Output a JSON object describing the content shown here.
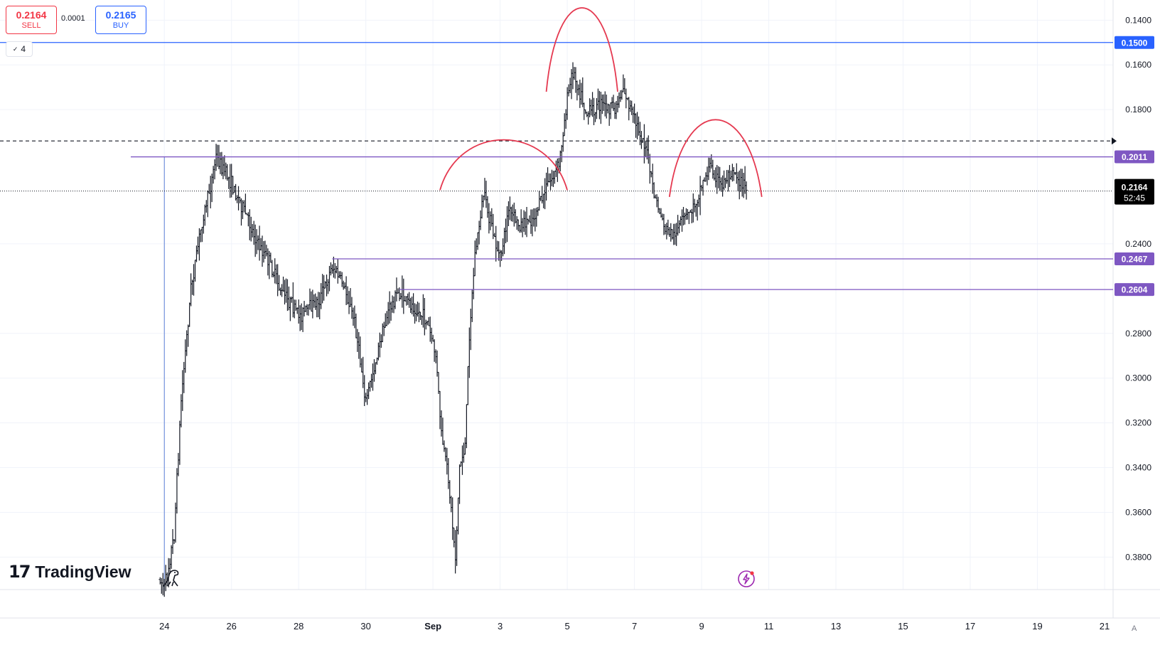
{
  "trade_panel": {
    "sell_price": "0.2164",
    "sell_label": "SELL",
    "spread": "0.0001",
    "buy_price": "0.2165",
    "buy_label": "BUY",
    "lots": "4"
  },
  "branding": {
    "logo_mark": "17",
    "logo_text": "TradingView"
  },
  "scale_mode": "A",
  "icons": [
    "chevron-down-icon",
    "tradingview-logo-icon",
    "dino-icon",
    "lightning-icon"
  ],
  "colors": {
    "line_purple": "#7e57c2",
    "arc_red": "#e53950",
    "last_price_bg": "#000000",
    "axis_text": "#131722"
  },
  "chart_data": {
    "type": "bar",
    "ohlc_style": true,
    "price_axis_inverted": true,
    "ylim": [
      0.131,
      0.3945
    ],
    "y_ticks": [
      0.14,
      0.16,
      0.18,
      0.24,
      0.28,
      0.3,
      0.32,
      0.34,
      0.36,
      0.38
    ],
    "y_tick_labels": [
      "0.1400",
      "0.1600",
      "0.1800",
      "0.2400",
      "0.2800",
      "0.3000",
      "0.3200",
      "0.3400",
      "0.3600",
      "0.3800"
    ],
    "x_ticks": [
      "2024-08-24",
      "2024-08-26",
      "2024-08-28",
      "2024-08-30",
      "2024-09-01",
      "2024-09-03",
      "2024-09-05",
      "2024-09-07",
      "2024-09-09",
      "2024-09-11",
      "2024-09-13",
      "2024-09-15",
      "2024-09-17",
      "2024-09-19",
      "2024-09-21"
    ],
    "x_tick_labels": [
      "24",
      "26",
      "28",
      "30",
      "Sep",
      "3",
      "5",
      "7",
      "9",
      "11",
      "13",
      "15",
      "17",
      "19",
      "21"
    ],
    "xlim": [
      "2024-08-19",
      "2024-09-21"
    ],
    "last_price": {
      "value": 0.2164,
      "label": "0.2164",
      "countdown": "52:45"
    },
    "horizontal_lines": [
      {
        "value": 0.15,
        "label": "0.1500",
        "color": "#2962ff",
        "from": "2024-08-19"
      },
      {
        "value": 0.2011,
        "label": "0.2011",
        "color": "#7e57c2",
        "from": "2024-08-23"
      },
      {
        "value": 0.2467,
        "label": "0.2467",
        "color": "#7e57c2",
        "from": "2024-08-29"
      },
      {
        "value": 0.2604,
        "label": "0.2604",
        "color": "#7e57c2",
        "from": "2024-08-31"
      }
    ],
    "dashed_line": {
      "value": 0.194
    },
    "vertical_line": {
      "date": "2024-08-24",
      "from": 0.2011,
      "to": 0.3945
    },
    "arcs": [
      {
        "from": "2024-09-04T09:00",
        "to": "2024-09-06T12:00",
        "peak": 0.147,
        "ends": 0.172
      },
      {
        "from": "2024-09-01T05:00",
        "to": "2024-09-05T00:00",
        "peak": 0.201,
        "ends": 0.216
      },
      {
        "from": "2024-09-08T01:00",
        "to": "2024-09-10T19:00",
        "peak": 0.196,
        "ends": 0.219
      }
    ],
    "price_path": [
      [
        "2024-08-23T21:00",
        0.39
      ],
      [
        "2024-08-24T00:00",
        0.394
      ],
      [
        "2024-08-24T07:00",
        0.37
      ],
      [
        "2024-08-24T12:00",
        0.31
      ],
      [
        "2024-08-24T19:00",
        0.26
      ],
      [
        "2024-08-25T03:00",
        0.23
      ],
      [
        "2024-08-25T09:00",
        0.214
      ],
      [
        "2024-08-25T13:00",
        0.201
      ],
      [
        "2024-08-25T23:00",
        0.212
      ],
      [
        "2024-08-26T09:00",
        0.225
      ],
      [
        "2024-08-26T19:00",
        0.24
      ],
      [
        "2024-08-27T03:00",
        0.248
      ],
      [
        "2024-08-27T12:00",
        0.262
      ],
      [
        "2024-08-28T01:00",
        0.272
      ],
      [
        "2024-08-28T15:00",
        0.265
      ],
      [
        "2024-08-29T00:00",
        0.25
      ],
      [
        "2024-08-29T08:00",
        0.258
      ],
      [
        "2024-08-29T16:00",
        0.275
      ],
      [
        "2024-08-30T00:00",
        0.31
      ],
      [
        "2024-08-30T08:00",
        0.29
      ],
      [
        "2024-08-30T16:00",
        0.27
      ],
      [
        "2024-08-30T23:00",
        0.262
      ],
      [
        "2024-08-31T10:00",
        0.268
      ],
      [
        "2024-08-31T20:00",
        0.275
      ],
      [
        "2024-09-01T02:00",
        0.29
      ],
      [
        "2024-09-01T06:00",
        0.325
      ],
      [
        "2024-09-01T11:00",
        0.345
      ],
      [
        "2024-09-01T16:00",
        0.38
      ],
      [
        "2024-09-01T19:00",
        0.34
      ],
      [
        "2024-09-01T23:00",
        0.33
      ],
      [
        "2024-09-02T02:00",
        0.28
      ],
      [
        "2024-09-02T06:00",
        0.245
      ],
      [
        "2024-09-02T12:00",
        0.218
      ],
      [
        "2024-09-02T20:00",
        0.238
      ],
      [
        "2024-09-03T00:00",
        0.247
      ],
      [
        "2024-09-03T06:00",
        0.225
      ],
      [
        "2024-09-03T14:00",
        0.232
      ],
      [
        "2024-09-04T00:00",
        0.228
      ],
      [
        "2024-09-04T10:00",
        0.214
      ],
      [
        "2024-09-04T18:00",
        0.205
      ],
      [
        "2024-09-04T21:00",
        0.19
      ],
      [
        "2024-09-05T00:00",
        0.175
      ],
      [
        "2024-09-05T04:00",
        0.163
      ],
      [
        "2024-09-05T08:00",
        0.17
      ],
      [
        "2024-09-05T14:00",
        0.182
      ],
      [
        "2024-09-06T00:00",
        0.178
      ],
      [
        "2024-09-06T10:00",
        0.18
      ],
      [
        "2024-09-06T16:00",
        0.17
      ],
      [
        "2024-09-07T00:00",
        0.185
      ],
      [
        "2024-09-07T08:00",
        0.196
      ],
      [
        "2024-09-07T14:00",
        0.218
      ],
      [
        "2024-09-07T22:00",
        0.233
      ],
      [
        "2024-09-08T04:00",
        0.236
      ],
      [
        "2024-09-08T10:00",
        0.23
      ],
      [
        "2024-09-08T18:00",
        0.224
      ],
      [
        "2024-09-09T00:00",
        0.214
      ],
      [
        "2024-09-09T06:00",
        0.205
      ],
      [
        "2024-09-09T14:00",
        0.214
      ],
      [
        "2024-09-09T22:00",
        0.206
      ],
      [
        "2024-09-10T04:00",
        0.212
      ],
      [
        "2024-09-10T08:00",
        0.216
      ]
    ]
  }
}
